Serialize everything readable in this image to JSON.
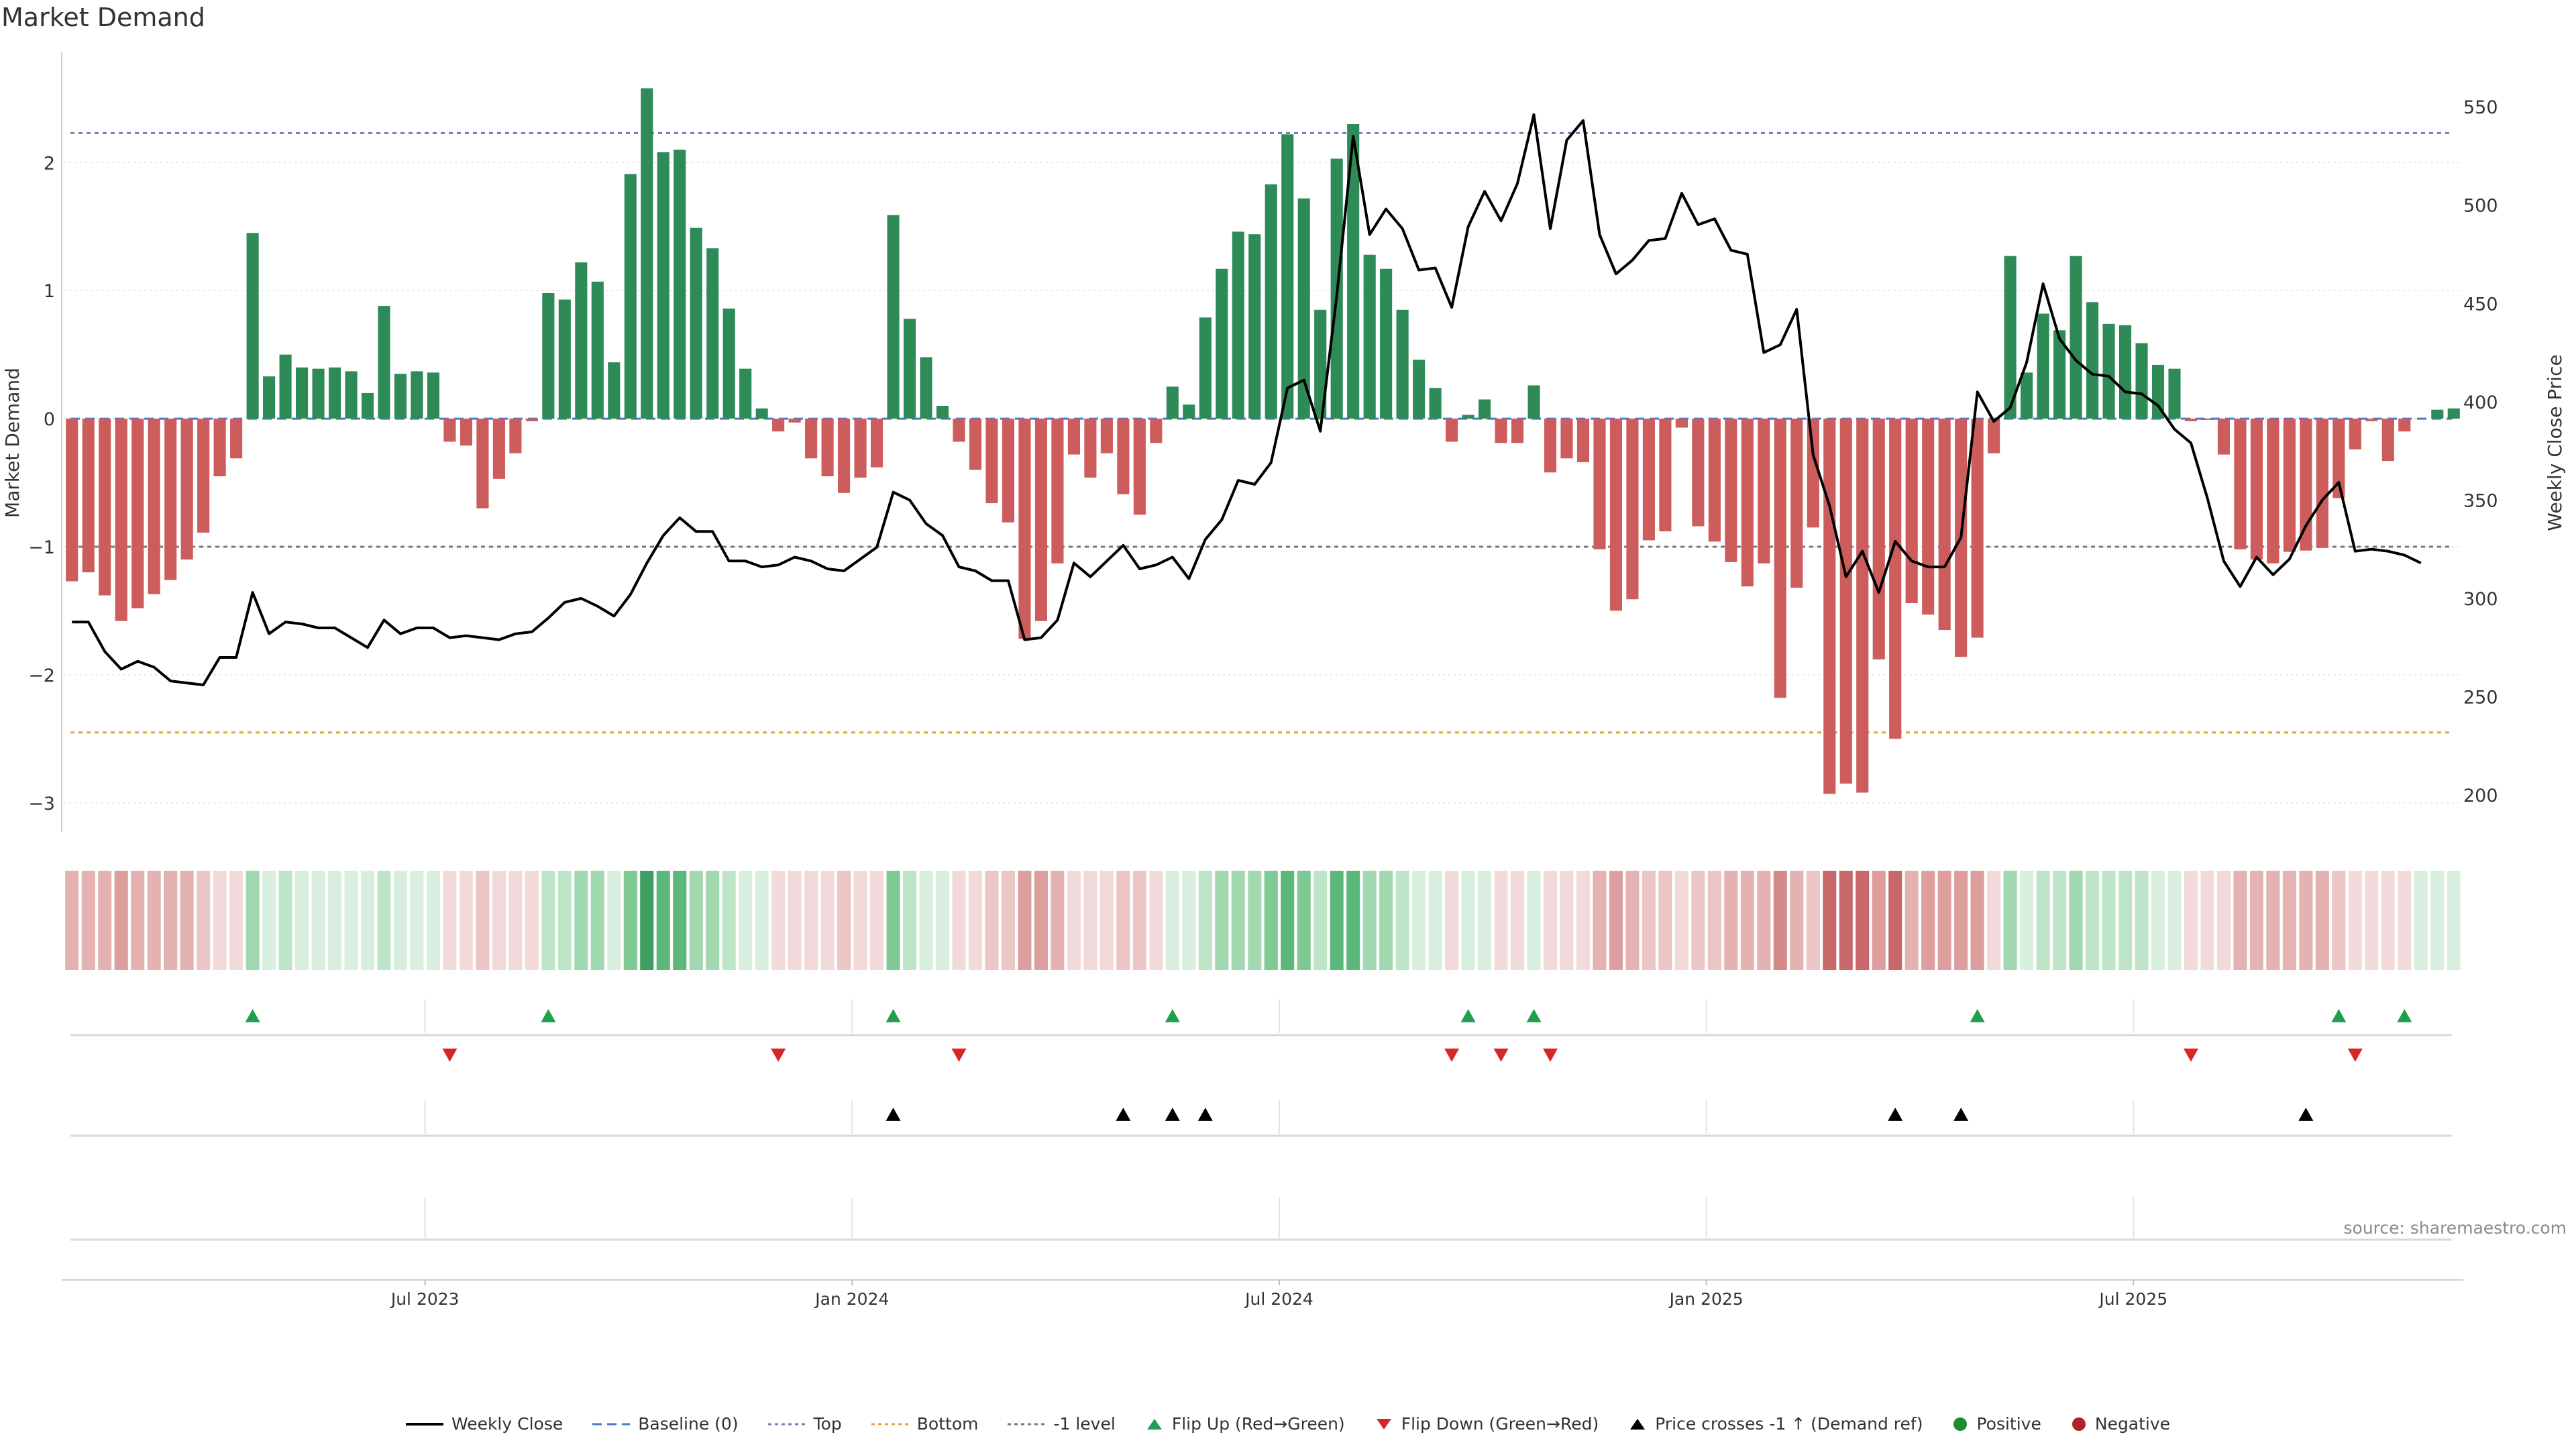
{
  "title": "Market Demand",
  "source": "source: sharemaestro.com",
  "colors": {
    "positive": "#2e8b57",
    "negative": "#cd5c5c",
    "price": "#000000",
    "top_line": "#7b7bb4",
    "bottom_line": "#e8a040",
    "minus1_line": "#777777",
    "baseline": "#4c78c8",
    "flip_up": "#1f9e4f",
    "flip_down": "#d62728",
    "cross": "#000000",
    "legend_positive": "#1f8a2f",
    "legend_negative": "#b22222"
  },
  "chart_data": {
    "type": "bar",
    "title": "Market Demand",
    "xlabel": "",
    "ylabel": "Market Demand",
    "y2label": "Weekly Close Price",
    "ylim": [
      -3.2,
      2.85
    ],
    "y2lim": [
      183,
      577
    ],
    "yticks": [
      2,
      1,
      0,
      -1,
      -2,
      -3
    ],
    "yticklabels": [
      "2",
      "1",
      "0",
      "−1",
      "−2",
      "−3"
    ],
    "y2ticks": [
      550,
      500,
      450,
      400,
      350,
      300,
      250,
      200
    ],
    "y2ticklabels": [
      "550",
      "500",
      "450",
      "400",
      "350",
      "300",
      "250",
      "200"
    ],
    "xticks": [
      22,
      48,
      74,
      100,
      126
    ],
    "xticklabels": [
      "Jul 2023",
      "Jan 2024",
      "Jul 2024",
      "Jan 2025",
      "Jul 2025"
    ],
    "levels": {
      "top": 2.23,
      "bottom": -2.45,
      "minus1": -1.0,
      "baseline": 0
    },
    "demand": [
      -1.27,
      -1.2,
      -1.38,
      -1.58,
      -1.48,
      -1.37,
      -1.26,
      -1.1,
      -0.89,
      -0.45,
      -0.31,
      1.45,
      0.33,
      0.5,
      0.4,
      0.39,
      0.4,
      0.37,
      0.2,
      0.88,
      0.35,
      0.37,
      0.36,
      -0.18,
      -0.21,
      -0.7,
      -0.47,
      -0.27,
      -0.02,
      0.98,
      0.93,
      1.22,
      1.07,
      0.44,
      1.91,
      2.58,
      2.08,
      2.1,
      1.49,
      1.33,
      0.86,
      0.39,
      0.08,
      -0.1,
      -0.03,
      -0.31,
      -0.45,
      -0.58,
      -0.46,
      -0.38,
      1.59,
      0.78,
      0.48,
      0.1,
      -0.18,
      -0.4,
      -0.66,
      -0.81,
      -1.72,
      -1.58,
      -1.13,
      -0.28,
      -0.46,
      -0.27,
      -0.59,
      -0.75,
      -0.19,
      0.25,
      0.11,
      0.79,
      1.17,
      1.46,
      1.44,
      1.83,
      2.22,
      1.72,
      0.85,
      2.03,
      2.3,
      1.28,
      1.17,
      0.85,
      0.46,
      0.24,
      -0.18,
      0.03,
      0.15,
      -0.19,
      -0.19,
      0.26,
      -0.42,
      -0.31,
      -0.34,
      -1.02,
      -1.5,
      -1.41,
      -0.95,
      -0.88,
      -0.07,
      -0.84,
      -0.96,
      -1.12,
      -1.31,
      -1.13,
      -2.18,
      -1.32,
      -0.85,
      -2.93,
      -2.85,
      -2.92,
      -1.88,
      -2.5,
      -1.44,
      -1.53,
      -1.65,
      -1.86,
      -1.71,
      -0.27,
      1.27,
      0.36,
      0.82,
      0.69,
      1.27,
      0.91,
      0.74,
      0.73,
      0.59,
      0.42,
      0.39,
      -0.02,
      -0.01,
      -0.28,
      -1.02,
      -1.1,
      -1.13,
      -1.04,
      -1.03,
      -1.01,
      -0.62,
      -0.24,
      -0.02,
      -0.33,
      -0.1,
      0,
      0.07,
      0.08
    ],
    "price": [
      288,
      288,
      273,
      264,
      268,
      265,
      258,
      257,
      256,
      270,
      270,
      303,
      282,
      288,
      287,
      285,
      285,
      280,
      275,
      289,
      282,
      285,
      285,
      280,
      281,
      280,
      279,
      282,
      283,
      290,
      298,
      300,
      296,
      291,
      302,
      318,
      332,
      341,
      334,
      334,
      319,
      319,
      316,
      317,
      321,
      319,
      315,
      314,
      320,
      326,
      354,
      350,
      338,
      332,
      316,
      314,
      309,
      309,
      279,
      280,
      289,
      318,
      311,
      319,
      327,
      315,
      317,
      321,
      310,
      330,
      340,
      360,
      358,
      369,
      407,
      411,
      385,
      454,
      535,
      485,
      498,
      488,
      467,
      468,
      448,
      489,
      507,
      492,
      511,
      546,
      488,
      533,
      543,
      485,
      465,
      472,
      482,
      483,
      506,
      490,
      493,
      477,
      475,
      425,
      429,
      447,
      373,
      347,
      311,
      324,
      303,
      329,
      319,
      316,
      316,
      331,
      405,
      390,
      397,
      420,
      460,
      432,
      421,
      414,
      413,
      405,
      404,
      398,
      386,
      379,
      351,
      319,
      306,
      321,
      312,
      320,
      337,
      350,
      359,
      324,
      325,
      324,
      322,
      318
    ]
  },
  "markers": {
    "flip_up": [
      11,
      29,
      50,
      67,
      85,
      89,
      116,
      138,
      142
    ],
    "flip_down": [
      23,
      43,
      54,
      84,
      87,
      90,
      129,
      139
    ],
    "price_cross": [
      50,
      64,
      67,
      69,
      111,
      115,
      136
    ]
  },
  "legend": [
    {
      "type": "line-solid",
      "label": "Weekly Close"
    },
    {
      "type": "line-dashed",
      "label": "Baseline (0)"
    },
    {
      "type": "line-dotted-top",
      "label": "Top"
    },
    {
      "type": "line-dotted-bottom",
      "label": "Bottom"
    },
    {
      "type": "line-dotted-minus1",
      "label": "-1 level"
    },
    {
      "type": "tri-up",
      "label": "Flip Up (Red→Green)"
    },
    {
      "type": "tri-down",
      "label": "Flip Down (Green→Red)"
    },
    {
      "type": "tri-up-black",
      "label": "Price crosses -1 ↑ (Demand ref)"
    },
    {
      "type": "dot-green",
      "label": "Positive"
    },
    {
      "type": "dot-red",
      "label": "Negative"
    }
  ]
}
